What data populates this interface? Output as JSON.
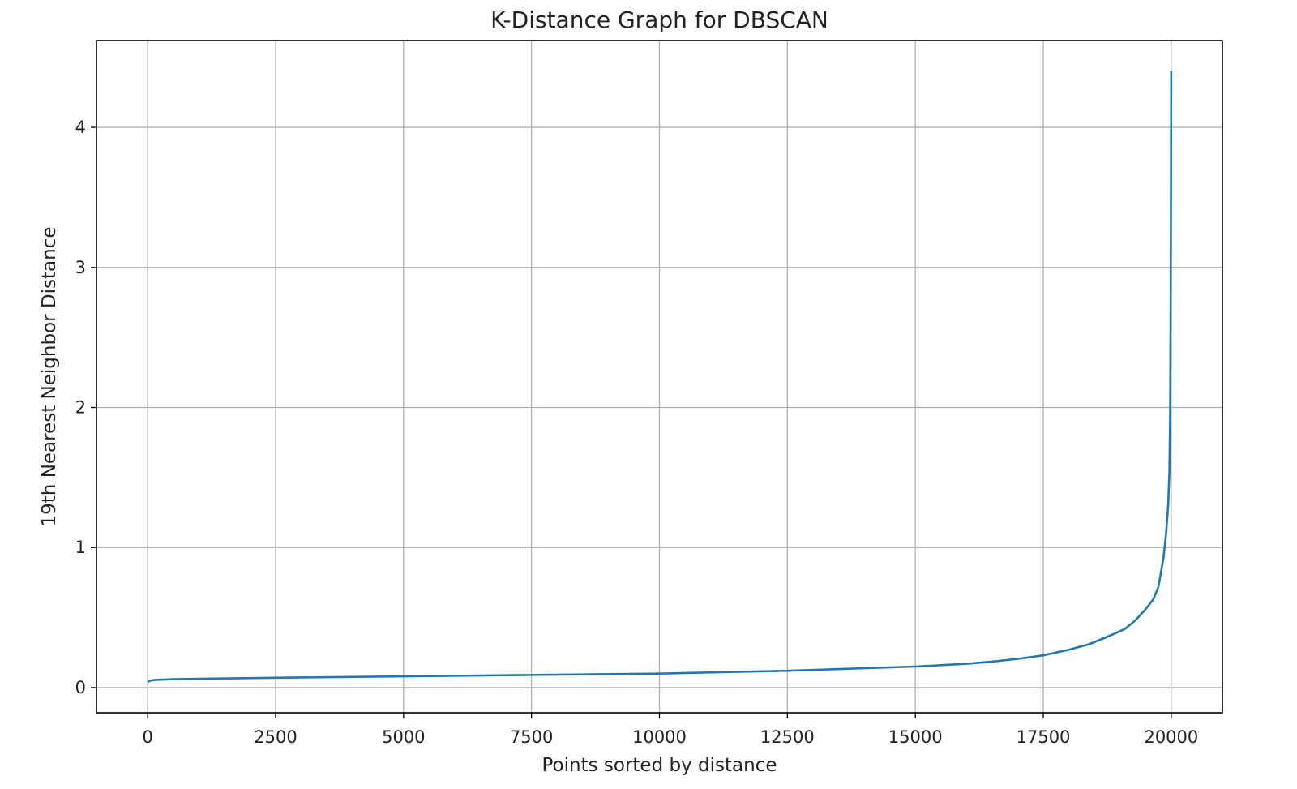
{
  "chart_data": {
    "type": "line",
    "title": "K-Distance Graph for DBSCAN",
    "xlabel": "Points sorted by distance",
    "ylabel": "19th Nearest Neighbor Distance",
    "xlim": [
      -1000,
      21000
    ],
    "ylim": [
      -0.18,
      4.62
    ],
    "grid": true,
    "xticks": [
      0,
      2500,
      5000,
      7500,
      10000,
      12500,
      15000,
      17500,
      20000
    ],
    "xtick_labels": [
      "0",
      "2500",
      "5000",
      "7500",
      "10000",
      "12500",
      "15000",
      "17500",
      "20000"
    ],
    "yticks": [
      0,
      1,
      2,
      3,
      4
    ],
    "ytick_labels": [
      "0",
      "1",
      "2",
      "3",
      "4"
    ],
    "series": [
      {
        "name": "19th nearest neighbor distance",
        "color": "#1f77b4",
        "x": [
          0,
          50,
          150,
          500,
          1000,
          2500,
          5000,
          7500,
          10000,
          12500,
          15000,
          16000,
          16500,
          17000,
          17500,
          18000,
          18400,
          18800,
          19100,
          19300,
          19500,
          19650,
          19750,
          19850,
          19900,
          19940,
          19965,
          19980,
          19990,
          19996,
          20000
        ],
        "y": [
          0.04,
          0.05,
          0.055,
          0.06,
          0.063,
          0.07,
          0.08,
          0.09,
          0.1,
          0.12,
          0.15,
          0.17,
          0.185,
          0.205,
          0.23,
          0.27,
          0.31,
          0.37,
          0.42,
          0.48,
          0.56,
          0.63,
          0.72,
          0.93,
          1.1,
          1.3,
          1.55,
          2.0,
          2.8,
          3.6,
          4.4
        ]
      }
    ]
  }
}
